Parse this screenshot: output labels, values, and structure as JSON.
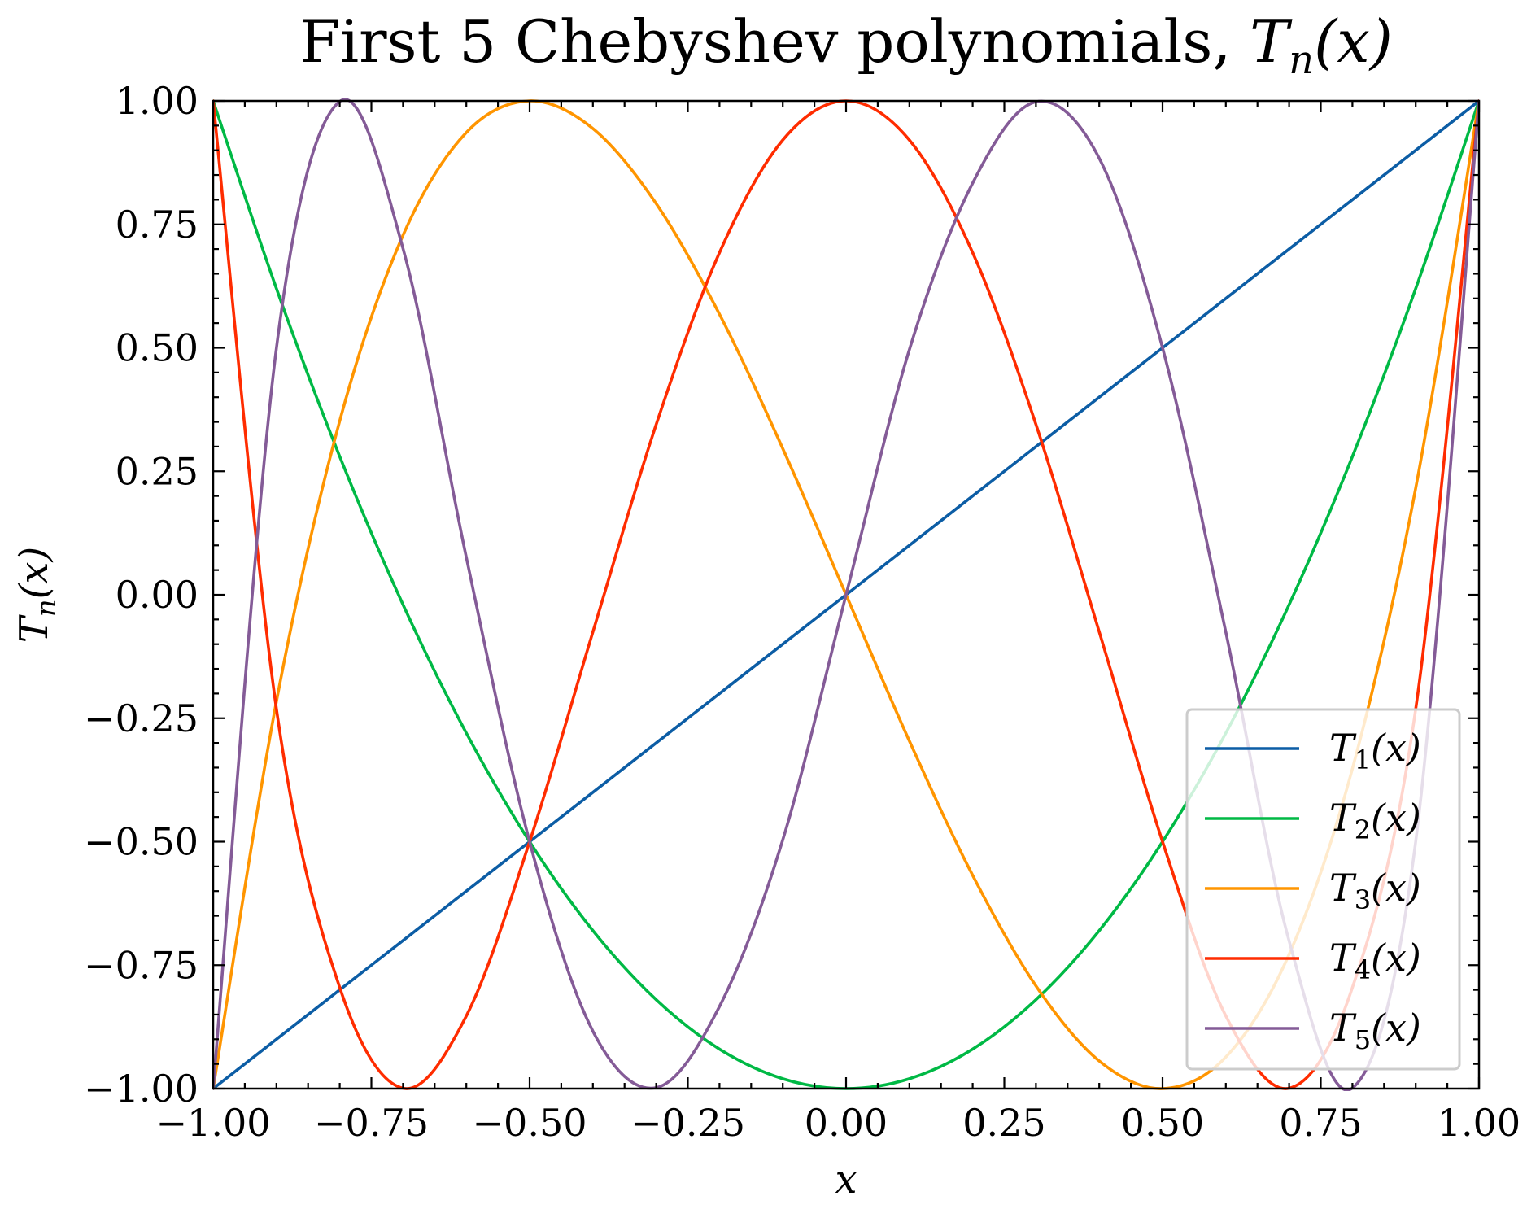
{
  "chart_data": {
    "type": "line",
    "title": "First 5 Chebyshev polynomials, Tn(x)",
    "title_parts": {
      "prefix": "First 5 Chebyshev polynomials, ",
      "math_base": "T",
      "math_sub": "n",
      "math_rest": "(x)"
    },
    "xlabel": "x",
    "ylabel": {
      "base": "T",
      "sub": "n",
      "rest": "(x)"
    },
    "xlim": [
      -1.0,
      1.0
    ],
    "ylim": [
      -1.0,
      1.0
    ],
    "xticks": [
      -1.0,
      -0.75,
      -0.5,
      -0.25,
      0.0,
      0.25,
      0.5,
      0.75,
      1.0
    ],
    "yticks": [
      -1.0,
      -0.75,
      -0.5,
      -0.25,
      0.0,
      0.25,
      0.5,
      0.75,
      1.0
    ],
    "xtick_labels": [
      "−1.00",
      "−0.75",
      "−0.50",
      "−0.25",
      "0.00",
      "0.25",
      "0.50",
      "0.75",
      "1.00"
    ],
    "ytick_labels": [
      "−1.00",
      "−0.75",
      "−0.50",
      "−0.25",
      "0.00",
      "0.25",
      "0.50",
      "0.75",
      "1.00"
    ],
    "grid": false,
    "legend_position": "lower-right",
    "x": [
      -1.0,
      -0.9,
      -0.8,
      -0.7,
      -0.6,
      -0.5,
      -0.4,
      -0.3,
      -0.2,
      -0.1,
      0.0,
      0.1,
      0.2,
      0.3,
      0.4,
      0.5,
      0.6,
      0.7,
      0.8,
      0.9,
      1.0
    ],
    "series": [
      {
        "name": "T1(x)",
        "label_base": "T",
        "label_sub": "1",
        "label_rest": "(x)",
        "color": "#0C5DA5",
        "values": [
          -1.0,
          -0.9,
          -0.8,
          -0.7,
          -0.6,
          -0.5,
          -0.4,
          -0.3,
          -0.2,
          -0.1,
          0.0,
          0.1,
          0.2,
          0.3,
          0.4,
          0.5,
          0.6,
          0.7,
          0.8,
          0.9,
          1.0
        ]
      },
      {
        "name": "T2(x)",
        "label_base": "T",
        "label_sub": "2",
        "label_rest": "(x)",
        "color": "#00B945",
        "values": [
          1.0,
          0.62,
          0.28,
          -0.02,
          -0.28,
          -0.5,
          -0.68,
          -0.82,
          -0.92,
          -0.98,
          -1.0,
          -0.98,
          -0.92,
          -0.82,
          -0.68,
          -0.5,
          -0.28,
          -0.02,
          0.28,
          0.62,
          1.0
        ]
      },
      {
        "name": "T3(x)",
        "label_base": "T",
        "label_sub": "3",
        "label_rest": "(x)",
        "color": "#FF9500",
        "values": [
          -1.0,
          -0.216,
          0.352,
          0.728,
          0.936,
          1.0,
          0.944,
          0.792,
          0.568,
          0.296,
          0.0,
          -0.296,
          -0.568,
          -0.792,
          -0.944,
          -1.0,
          -0.936,
          -0.728,
          -0.352,
          0.216,
          1.0
        ]
      },
      {
        "name": "T4(x)",
        "label_base": "T",
        "label_sub": "4",
        "label_rest": "(x)",
        "color": "#FF2C00",
        "values": [
          1.0,
          -0.2312,
          -0.7952,
          -0.9992,
          -0.8528,
          -0.5,
          -0.0752,
          0.3448,
          0.6928,
          0.9208,
          1.0,
          0.9208,
          0.6928,
          0.3448,
          -0.0752,
          -0.5,
          -0.8528,
          -0.9992,
          -0.7952,
          -0.2312,
          1.0
        ]
      },
      {
        "name": "T5(x)",
        "label_base": "T",
        "label_sub": "5",
        "label_rest": "(x)",
        "color": "#845B97",
        "values": [
          -1.0,
          0.4995,
          0.9988,
          0.7011,
          0.0758,
          -0.5,
          -0.8838,
          -0.9981,
          -0.8336,
          -0.4962,
          0.0,
          0.4962,
          0.8336,
          0.9981,
          0.8838,
          0.5,
          -0.0758,
          -0.7011,
          -0.9988,
          -0.4995,
          1.0
        ]
      }
    ]
  }
}
